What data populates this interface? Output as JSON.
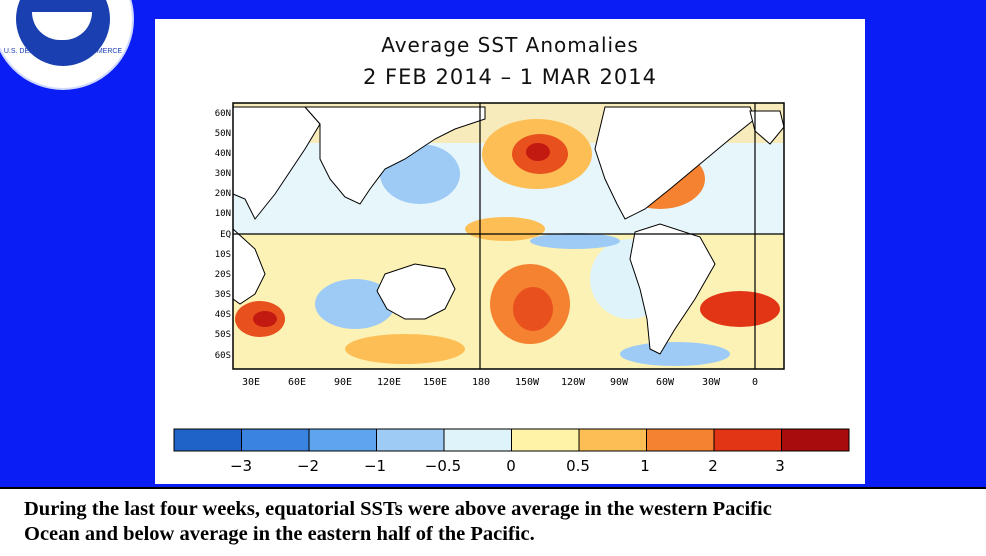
{
  "logo": {
    "text": "U.S. DEPARTMENT OF COMMERCE"
  },
  "map": {
    "title": "Average SST Anomalies",
    "subtitle": "2 FEB 2014 – 1 MAR 2014",
    "lat_labels": [
      "60N",
      "50N",
      "40N",
      "30N",
      "20N",
      "10N",
      "EQ",
      "10S",
      "20S",
      "30S",
      "40S",
      "50S",
      "60S"
    ],
    "lon_labels": [
      "30E",
      "60E",
      "90E",
      "120E",
      "150E",
      "180",
      "150W",
      "120W",
      "90W",
      "60W",
      "30W",
      "0"
    ],
    "legend": {
      "ticks": [
        "−3",
        "−2",
        "−1",
        "−0.5",
        "0",
        "0.5",
        "1",
        "2",
        "3"
      ],
      "colors": [
        "#1f63c9",
        "#3a83e0",
        "#5ea4ee",
        "#9ecbf6",
        "#dff3fb",
        "#fff3a8",
        "#fdbf55",
        "#f58231",
        "#e23515",
        "#a80c0c"
      ]
    }
  },
  "caption": {
    "line1": "During the last four weeks, equatorial SSTs were above average in the western Pacific",
    "line2": "Ocean and below average in the eastern half of the Pacific."
  }
}
